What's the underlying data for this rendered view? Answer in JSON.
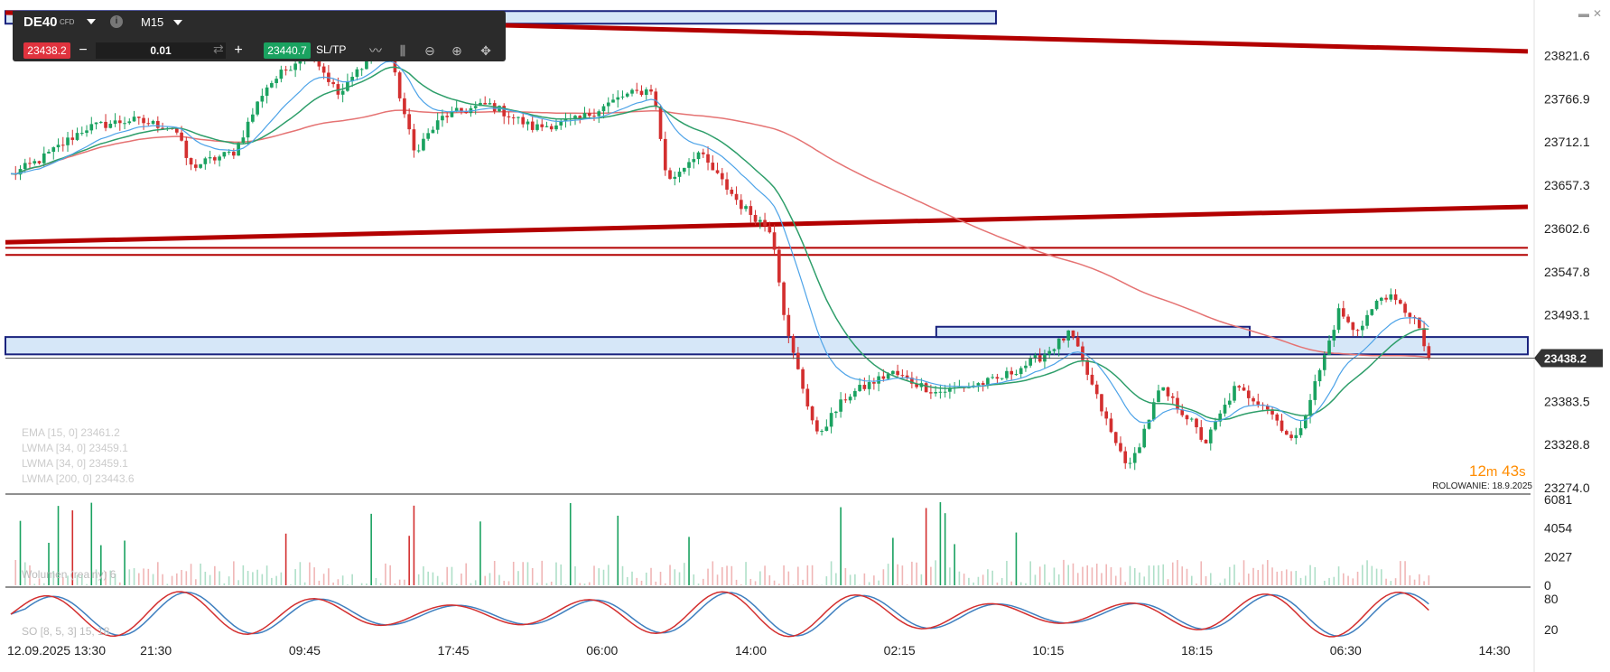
{
  "toolbar": {
    "symbol": "DE40",
    "instrument_type": "CFD",
    "timeframe": "M15",
    "info_label": "i",
    "sell_price": "23438.2",
    "volume": "0.01",
    "buy_price": "23440.7",
    "sltp_label": "SL/TP",
    "minus_label": "−",
    "plus_label": "+",
    "icons": [
      "line-chart-icon",
      "candles-icon",
      "zoom-out-icon",
      "zoom-in-icon",
      "move-icon"
    ]
  },
  "window_controls": {
    "minimize": "▬",
    "close": "✕"
  },
  "price_axis": [
    "23821.6",
    "23766.9",
    "23712.1",
    "23657.3",
    "23602.6",
    "23547.8",
    "23493.1",
    "23383.5",
    "23328.8",
    "23274.0"
  ],
  "current_price": "23438.2",
  "countdown": {
    "minutes": "12",
    "m": "m",
    "seconds": "43",
    "s": "s"
  },
  "rollover": "ROLOWANIE: 18.9.2025",
  "indicators": [
    "EMA [15, 0] 23461.2",
    "LWMA [34, 0] 23459.1",
    "LWMA [34, 0] 23459.1",
    "LWMA [200, 0] 23443.6"
  ],
  "volume_axis": [
    "6081",
    "4054",
    "2027",
    "0"
  ],
  "volume_label": "Wolumen (realny) 6",
  "stoch_axis": [
    "80",
    "20"
  ],
  "stoch_label": "SO [8, 5, 3] 15, 18",
  "time_axis": [
    "12.09.2025 13:30",
    "21:30",
    "09:45",
    "17:45",
    "06:00",
    "14:00",
    "02:15",
    "10:15",
    "18:15",
    "06:30",
    "14:30"
  ],
  "colors": {
    "up": "#1aa260",
    "down": "#d32f2f",
    "ema": "#4da3e8",
    "lwma34": "#2e9e6a",
    "lwma200": "#e57373",
    "trendline": "#b30000",
    "zone_fill": "#cfe3f7",
    "zone_border": "#1a237e",
    "stoch_k": "#d32f2f",
    "stoch_d": "#3f7fbf",
    "countdown": "#ff8c00"
  },
  "chart_data": {
    "type": "candlestick",
    "series_names": [
      "EMA [15, 0]",
      "LWMA [34, 0]",
      "LWMA [200, 0]"
    ],
    "ylim": [
      23274.0,
      23876.0
    ],
    "x_ticks": [
      "12.09.2025 13:30",
      "21:30",
      "09:45",
      "17:45",
      "06:00",
      "14:00",
      "02:15",
      "10:15",
      "18:15",
      "06:30",
      "14:30"
    ],
    "key_points": [
      {
        "t": 0.0,
        "v": 23670
      },
      {
        "t": 0.02,
        "v": 23690
      },
      {
        "t": 0.05,
        "v": 23730
      },
      {
        "t": 0.08,
        "v": 23740
      },
      {
        "t": 0.11,
        "v": 23730
      },
      {
        "t": 0.12,
        "v": 23680
      },
      {
        "t": 0.15,
        "v": 23700
      },
      {
        "t": 0.17,
        "v": 23780
      },
      {
        "t": 0.2,
        "v": 23830
      },
      {
        "t": 0.22,
        "v": 23770
      },
      {
        "t": 0.25,
        "v": 23850
      },
      {
        "t": 0.27,
        "v": 23700
      },
      {
        "t": 0.29,
        "v": 23745
      },
      {
        "t": 0.32,
        "v": 23760
      },
      {
        "t": 0.35,
        "v": 23730
      },
      {
        "t": 0.38,
        "v": 23740
      },
      {
        "t": 0.41,
        "v": 23770
      },
      {
        "t": 0.43,
        "v": 23780
      },
      {
        "t": 0.44,
        "v": 23660
      },
      {
        "t": 0.46,
        "v": 23700
      },
      {
        "t": 0.49,
        "v": 23630
      },
      {
        "t": 0.51,
        "v": 23600
      },
      {
        "t": 0.52,
        "v": 23470
      },
      {
        "t": 0.54,
        "v": 23340
      },
      {
        "t": 0.56,
        "v": 23390
      },
      {
        "t": 0.59,
        "v": 23420
      },
      {
        "t": 0.62,
        "v": 23395
      },
      {
        "t": 0.66,
        "v": 23410
      },
      {
        "t": 0.69,
        "v": 23440
      },
      {
        "t": 0.71,
        "v": 23470
      },
      {
        "t": 0.74,
        "v": 23330
      },
      {
        "t": 0.75,
        "v": 23300
      },
      {
        "t": 0.77,
        "v": 23400
      },
      {
        "t": 0.79,
        "v": 23360
      },
      {
        "t": 0.8,
        "v": 23330
      },
      {
        "t": 0.82,
        "v": 23400
      },
      {
        "t": 0.84,
        "v": 23380
      },
      {
        "t": 0.86,
        "v": 23330
      },
      {
        "t": 0.88,
        "v": 23440
      },
      {
        "t": 0.89,
        "v": 23500
      },
      {
        "t": 0.9,
        "v": 23470
      },
      {
        "t": 0.92,
        "v": 23520
      },
      {
        "t": 0.94,
        "v": 23490
      },
      {
        "t": 0.95,
        "v": 23438
      }
    ],
    "trendlines": [
      {
        "t0": 0.0,
        "v0": 23876,
        "t1": 1.0,
        "v1": 23827
      },
      {
        "t0": 0.0,
        "v0": 23585,
        "t1": 1.0,
        "v1": 23630
      }
    ],
    "horizontal_lines": [
      23578,
      23569
    ],
    "zones": [
      {
        "t0": 0.0,
        "t1": 1.0,
        "v0": 23465,
        "v1": 23443
      },
      {
        "t0": 0.0,
        "t1": 0.66,
        "v0": 23878,
        "v1": 23862
      },
      {
        "t0": 0.62,
        "t1": 0.83,
        "v0": 23478,
        "v1": 23465
      }
    ],
    "volume_ylim": [
      0,
      6081
    ],
    "stoch_ylim": [
      0,
      100
    ]
  }
}
